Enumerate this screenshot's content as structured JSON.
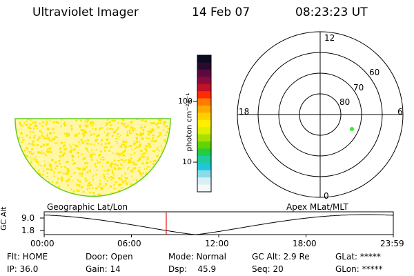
{
  "header": {
    "instrument": "Ultraviolet Imager",
    "date": "14 Feb 07",
    "time": "08:23:23 UT"
  },
  "colorbar": {
    "unit_label": "photon cm⁻²s⁻¹",
    "ticks": [
      "100",
      "10"
    ],
    "colors": [
      "#0b0b22",
      "#2a0a2e",
      "#5a0a40",
      "#8a0a3a",
      "#c0102a",
      "#ff2a00",
      "#ff7a00",
      "#ffa800",
      "#ffd000",
      "#ffee00",
      "#ddf000",
      "#a8e000",
      "#60d400",
      "#22cc44",
      "#1ecc9e",
      "#1ec8d8",
      "#8adcea",
      "#d8f0f4",
      "#f4f8f8"
    ]
  },
  "earth_view": {
    "fill_color": "#fff7a6",
    "speckle_color": "#ffe800",
    "limb_color": "#66cc22"
  },
  "polar_plot": {
    "mlt_labels": [
      "12",
      "18",
      "6",
      "0"
    ],
    "lat_labels": [
      "60",
      "70",
      "80"
    ],
    "point_color": "#33ee33"
  },
  "timeline": {
    "left_label": "Geographic Lat/Lon",
    "right_label": "Apex MLat/MLT",
    "axis_label": "GC Alt",
    "y_ticks": [
      "9.0",
      "1.8"
    ],
    "x_ticks": [
      "00:00",
      "06:00",
      "12:00",
      "18:00",
      "23:59"
    ],
    "current_time_hours": 8.39,
    "marker_color": "#dd0000"
  },
  "status": {
    "filter": "Flt: HOME",
    "door": "Door: Open",
    "mode": "Mode: Normal",
    "gc_alt": "GC Alt: 2.9 Re",
    "glat": "GLat: *****",
    "ip": "IP: 36.0",
    "gain": "Gain: 14",
    "dsp": "Dsp:    45.9",
    "seq": "Seq: 20",
    "glon": "GLon: *****"
  }
}
